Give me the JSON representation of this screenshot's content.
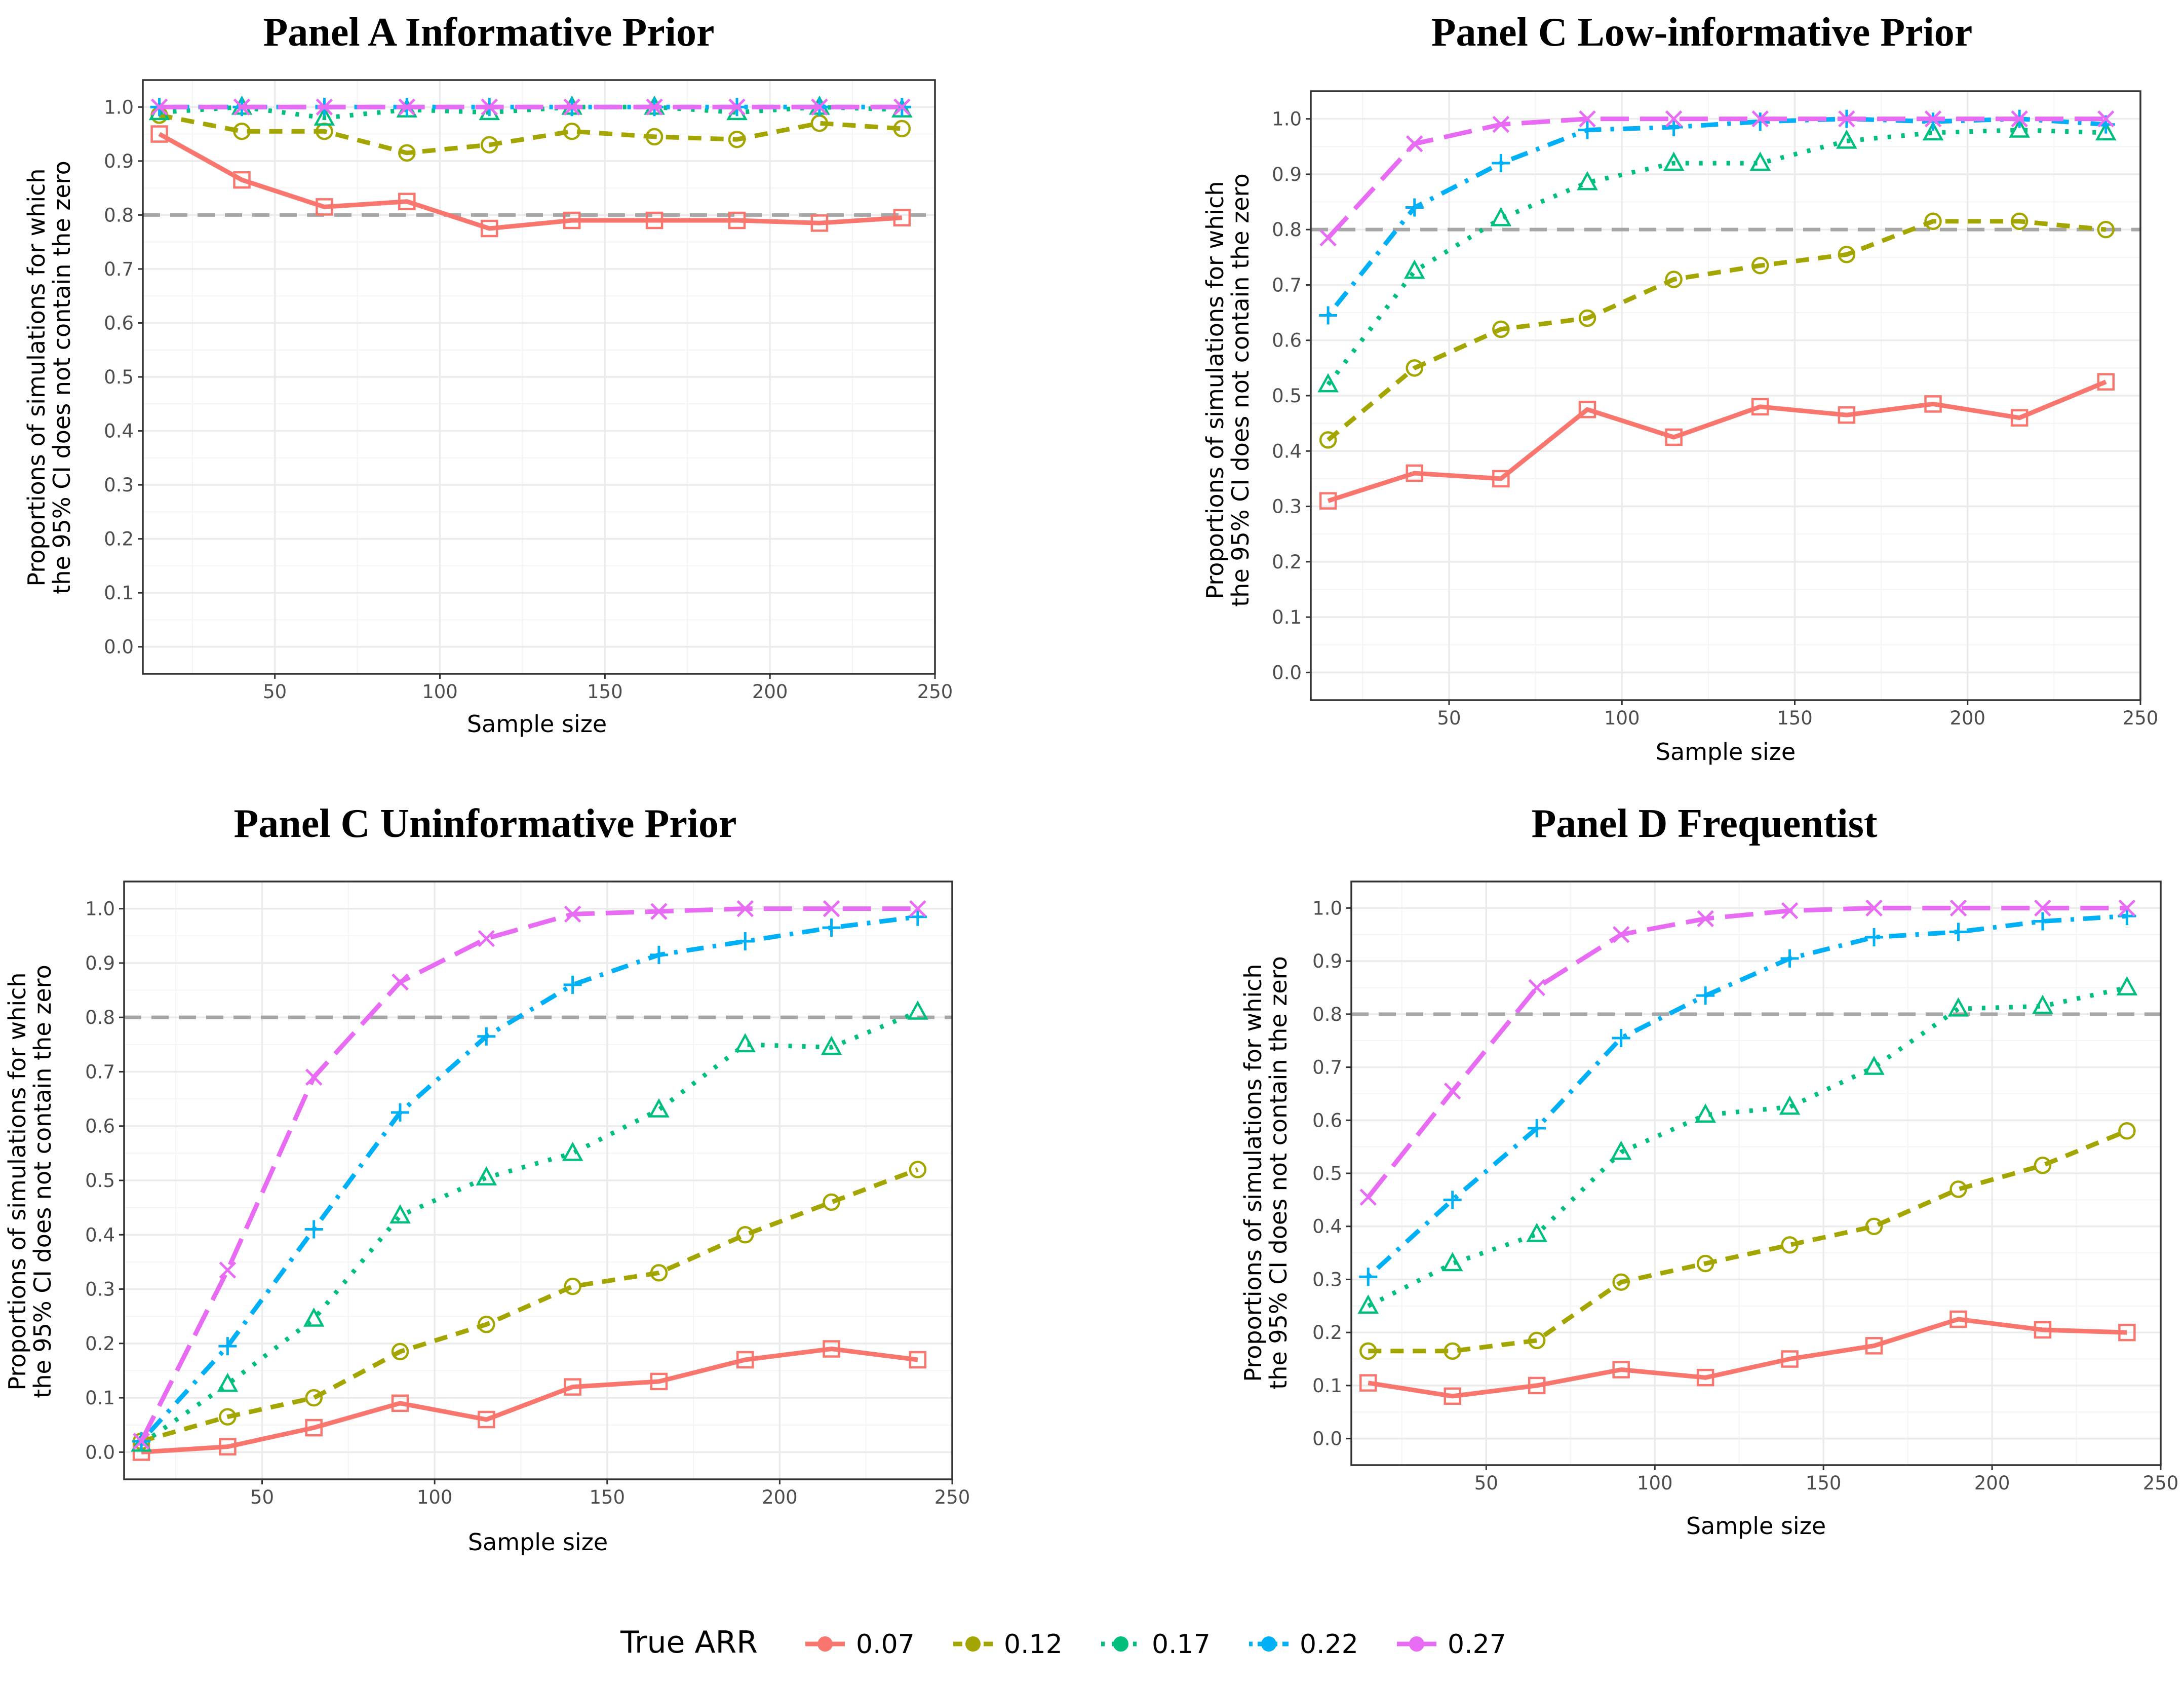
{
  "chart_data": [
    {
      "type": "line",
      "title": "Panel A Informative Prior",
      "xlabel": "Sample size",
      "ylabel": [
        "Proportions of simulations for which",
        "the 95% CI does not contain the zero"
      ],
      "xlim": [
        10,
        250
      ],
      "ylim": [
        -0.05,
        1.05
      ],
      "xticks": [
        "50",
        "100",
        "150",
        "200",
        "250"
      ],
      "yticks": [
        "0.0",
        "0.1",
        "0.2",
        "0.3",
        "0.4",
        "0.5",
        "0.6",
        "0.7",
        "0.8",
        "0.9",
        "1.0"
      ],
      "reference_line": 0.8,
      "x": [
        15,
        40,
        65,
        90,
        115,
        140,
        165,
        190,
        215,
        240
      ],
      "series": [
        {
          "name": "0.07",
          "values": [
            0.95,
            0.865,
            0.815,
            0.825,
            0.775,
            0.79,
            0.79,
            0.79,
            0.785,
            0.795
          ]
        },
        {
          "name": "0.12",
          "values": [
            0.985,
            0.955,
            0.955,
            0.915,
            0.93,
            0.955,
            0.945,
            0.94,
            0.97,
            0.96
          ]
        },
        {
          "name": "0.17",
          "values": [
            0.99,
            1.0,
            0.98,
            0.995,
            0.99,
            1.0,
            1.0,
            0.99,
            1.0,
            0.995
          ]
        },
        {
          "name": "0.22",
          "values": [
            1.0,
            1.0,
            1.0,
            1.0,
            1.0,
            1.0,
            1.0,
            1.0,
            1.0,
            1.0
          ]
        },
        {
          "name": "0.27",
          "values": [
            1.0,
            1.0,
            1.0,
            1.0,
            1.0,
            1.0,
            1.0,
            1.0,
            1.0,
            1.0
          ]
        }
      ]
    },
    {
      "type": "line",
      "title": "Panel C Low-informative Prior",
      "xlabel": "Sample size",
      "ylabel": [
        "Proportions of simulations for which",
        "the 95% CI does not contain the zero"
      ],
      "xlim": [
        10,
        250
      ],
      "ylim": [
        -0.05,
        1.05
      ],
      "xticks": [
        "50",
        "100",
        "150",
        "200",
        "250"
      ],
      "yticks": [
        "0.0",
        "0.1",
        "0.2",
        "0.3",
        "0.4",
        "0.5",
        "0.6",
        "0.7",
        "0.8",
        "0.9",
        "1.0"
      ],
      "reference_line": 0.8,
      "x": [
        15,
        40,
        65,
        90,
        115,
        140,
        165,
        190,
        215,
        240
      ],
      "series": [
        {
          "name": "0.07",
          "values": [
            0.31,
            0.36,
            0.35,
            0.475,
            0.425,
            0.48,
            0.465,
            0.485,
            0.46,
            0.525
          ]
        },
        {
          "name": "0.12",
          "values": [
            0.42,
            0.55,
            0.62,
            0.64,
            0.71,
            0.735,
            0.755,
            0.815,
            0.815,
            0.8
          ]
        },
        {
          "name": "0.17",
          "values": [
            0.52,
            0.725,
            0.82,
            0.885,
            0.92,
            0.92,
            0.96,
            0.975,
            0.98,
            0.975
          ]
        },
        {
          "name": "0.22",
          "values": [
            0.645,
            0.84,
            0.92,
            0.98,
            0.985,
            0.995,
            1.0,
            0.995,
            1.0,
            0.99
          ]
        },
        {
          "name": "0.27",
          "values": [
            0.785,
            0.955,
            0.99,
            1.0,
            1.0,
            1.0,
            1.0,
            1.0,
            1.0,
            1.0
          ]
        }
      ]
    },
    {
      "type": "line",
      "title": "Panel C Uninformative Prior",
      "xlabel": "Sample size",
      "ylabel": [
        "Proportions of simulations for which",
        "the 95% CI does not contain the zero"
      ],
      "xlim": [
        10,
        250
      ],
      "ylim": [
        -0.05,
        1.05
      ],
      "xticks": [
        "50",
        "100",
        "150",
        "200",
        "250"
      ],
      "yticks": [
        "0.0",
        "0.1",
        "0.2",
        "0.3",
        "0.4",
        "0.5",
        "0.6",
        "0.7",
        "0.8",
        "0.9",
        "1.0"
      ],
      "reference_line": 0.8,
      "x": [
        15,
        40,
        65,
        90,
        115,
        140,
        165,
        190,
        215,
        240
      ],
      "series": [
        {
          "name": "0.07",
          "values": [
            0.0,
            0.01,
            0.045,
            0.09,
            0.06,
            0.12,
            0.13,
            0.17,
            0.19,
            0.17
          ]
        },
        {
          "name": "0.12",
          "values": [
            0.02,
            0.065,
            0.1,
            0.185,
            0.235,
            0.305,
            0.33,
            0.4,
            0.46,
            0.52
          ]
        },
        {
          "name": "0.17",
          "values": [
            0.015,
            0.125,
            0.245,
            0.435,
            0.505,
            0.55,
            0.63,
            0.75,
            0.745,
            0.81
          ]
        },
        {
          "name": "0.22",
          "values": [
            0.02,
            0.195,
            0.41,
            0.625,
            0.765,
            0.86,
            0.915,
            0.94,
            0.965,
            0.985
          ]
        },
        {
          "name": "0.27",
          "values": [
            0.02,
            0.335,
            0.69,
            0.865,
            0.945,
            0.99,
            0.995,
            1.0,
            1.0,
            1.0
          ]
        }
      ]
    },
    {
      "type": "line",
      "title": "Panel D Frequentist",
      "xlabel": "Sample size",
      "ylabel": [
        "Proportions of simulations for which",
        "the 95% CI does not contain the zero"
      ],
      "xlim": [
        10,
        250
      ],
      "ylim": [
        -0.05,
        1.05
      ],
      "xticks": [
        "50",
        "100",
        "150",
        "200",
        "250"
      ],
      "yticks": [
        "0.0",
        "0.1",
        "0.2",
        "0.3",
        "0.4",
        "0.5",
        "0.6",
        "0.7",
        "0.8",
        "0.9",
        "1.0"
      ],
      "reference_line": 0.8,
      "x": [
        15,
        40,
        65,
        90,
        115,
        140,
        165,
        190,
        215,
        240
      ],
      "series": [
        {
          "name": "0.07",
          "values": [
            0.105,
            0.08,
            0.1,
            0.13,
            0.115,
            0.15,
            0.175,
            0.225,
            0.205,
            0.2
          ]
        },
        {
          "name": "0.12",
          "values": [
            0.165,
            0.165,
            0.185,
            0.295,
            0.33,
            0.365,
            0.4,
            0.47,
            0.515,
            0.58
          ]
        },
        {
          "name": "0.17",
          "values": [
            0.25,
            0.33,
            0.385,
            0.54,
            0.61,
            0.625,
            0.7,
            0.81,
            0.815,
            0.85
          ]
        },
        {
          "name": "0.22",
          "values": [
            0.305,
            0.45,
            0.585,
            0.755,
            0.835,
            0.905,
            0.945,
            0.955,
            0.975,
            0.985
          ]
        },
        {
          "name": "0.27",
          "values": [
            0.455,
            0.655,
            0.85,
            0.95,
            0.98,
            0.995,
            1.0,
            1.0,
            1.0,
            1.0
          ]
        }
      ]
    }
  ],
  "legend": {
    "title": "True ARR",
    "items": [
      "0.07",
      "0.12",
      "0.17",
      "0.22",
      "0.27"
    ]
  },
  "colors": {
    "0.07": "#F8766D",
    "0.12": "#A3A500",
    "0.17": "#00BF7D",
    "0.22": "#00B0F6",
    "0.27": "#E76BF3",
    "reference": "#A6A6A6",
    "grid_major": "#EBEBEB",
    "grid_minor": "#F4F4F4",
    "frame": "#333333"
  },
  "series_styles": {
    "0.07": {
      "dash": "solid",
      "marker": "square-open"
    },
    "0.12": {
      "dash": "dashed",
      "marker": "circle-open"
    },
    "0.17": {
      "dash": "dotted",
      "marker": "triangle-open"
    },
    "0.22": {
      "dash": "dotdash",
      "marker": "plus"
    },
    "0.27": {
      "dash": "longdash",
      "marker": "cross"
    }
  }
}
